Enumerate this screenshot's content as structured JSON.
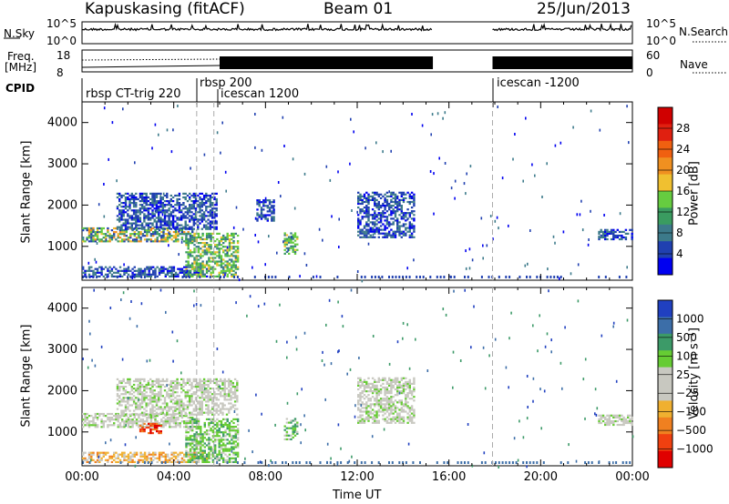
{
  "header": {
    "station": "Kapuskasing (fitACF)",
    "beam": "Beam 01",
    "date": "25/Jun/2013"
  },
  "nsky_panel": {
    "left_label": "N.Sky",
    "right_label": "N.Search",
    "ticks_left": [
      "10^5",
      "10^0"
    ],
    "ticks_right": [
      "10^5",
      "10^0"
    ]
  },
  "freq_panel": {
    "left_label_1": "Freq.",
    "left_label_2": "[MHz]",
    "right_label": "Nave",
    "ticks_left": [
      "18",
      "8"
    ],
    "ticks_right": [
      "60",
      "0"
    ]
  },
  "cpid": {
    "label": "CPID",
    "segments": [
      {
        "name": "rbsp CT-trig 220",
        "start_hour": 0.0
      },
      {
        "name": "rbsp 200",
        "start_hour": 5.0
      },
      {
        "name": "icescan 1200",
        "start_hour": 5.75
      },
      {
        "name": "icescan -1200",
        "start_hour": 17.9
      }
    ]
  },
  "chart_data": [
    {
      "type": "heatmap",
      "name": "power",
      "ylabel": "Slant Range [km]",
      "xlabel": "Time UT",
      "xlim_hours": [
        0,
        24
      ],
      "ylim": [
        180,
        4500
      ],
      "yticks": [
        1000,
        2000,
        3000,
        4000
      ],
      "colorbar_label": "Power [dB]",
      "colorbar_ticks": [
        "28",
        "24",
        "20",
        "16",
        "12",
        "8",
        "4"
      ],
      "colors": [
        "#0000f0",
        "#2040b0",
        "#3c7a8a",
        "#3a9c60",
        "#66cc40",
        "#f0c030",
        "#f09020",
        "#f06010",
        "#e02010",
        "#d00000"
      ],
      "regions": [
        {
          "t": [
            0.0,
            4.8
          ],
          "r": [
            1100,
            1450
          ],
          "level": "mid"
        },
        {
          "t": [
            0.0,
            5.4
          ],
          "r": [
            250,
            500
          ],
          "level": "low"
        },
        {
          "t": [
            1.5,
            5.9
          ],
          "r": [
            1400,
            2300
          ],
          "level": "low"
        },
        {
          "t": [
            4.5,
            6.8
          ],
          "r": [
            250,
            1300
          ],
          "level": "high"
        },
        {
          "t": [
            7.6,
            8.4
          ],
          "r": [
            1600,
            2100
          ],
          "level": "low"
        },
        {
          "t": [
            8.8,
            9.4
          ],
          "r": [
            800,
            1300
          ],
          "level": "high"
        },
        {
          "t": [
            12.0,
            14.5
          ],
          "r": [
            1200,
            2300
          ],
          "level": "low"
        },
        {
          "t": [
            22.5,
            24.0
          ],
          "r": [
            1150,
            1400
          ],
          "level": "low"
        }
      ]
    },
    {
      "type": "heatmap",
      "name": "velocity",
      "ylabel": "Slant Range [km]",
      "xlabel": "Time UT",
      "xlim_hours": [
        0,
        24
      ],
      "ylim": [
        180,
        4500
      ],
      "yticks": [
        1000,
        2000,
        3000,
        4000
      ],
      "xticks": [
        "00:00",
        "04:00",
        "08:00",
        "12:00",
        "16:00",
        "20:00",
        "00:00"
      ],
      "colorbar_label": "Velocity [m s⁻¹]",
      "colorbar_ticks": [
        "1000",
        "500",
        "100",
        "25",
        "−25",
        "−100",
        "−500",
        "−1000"
      ],
      "colors": [
        "#2040c0",
        "#3c6ea8",
        "#3c9a68",
        "#66cc33",
        "#c8c8c0",
        "#c8c8c0",
        "#f0b030",
        "#f08020",
        "#f04010",
        "#e00000"
      ],
      "regions": [
        {
          "t": [
            0.0,
            4.8
          ],
          "r": [
            1100,
            1450
          ],
          "level": "grey"
        },
        {
          "t": [
            0.0,
            5.4
          ],
          "r": [
            250,
            500
          ],
          "level": "orange"
        },
        {
          "t": [
            2.5,
            3.4
          ],
          "r": [
            950,
            1200
          ],
          "level": "red"
        },
        {
          "t": [
            1.5,
            6.8
          ],
          "r": [
            1400,
            2300
          ],
          "level": "grey"
        },
        {
          "t": [
            4.5,
            6.8
          ],
          "r": [
            250,
            1300
          ],
          "level": "green"
        },
        {
          "t": [
            8.8,
            9.4
          ],
          "r": [
            800,
            1300
          ],
          "level": "green"
        },
        {
          "t": [
            12.0,
            14.5
          ],
          "r": [
            1200,
            2300
          ],
          "level": "grey"
        },
        {
          "t": [
            22.5,
            24.0
          ],
          "r": [
            1150,
            1400
          ],
          "level": "grey"
        }
      ]
    }
  ]
}
